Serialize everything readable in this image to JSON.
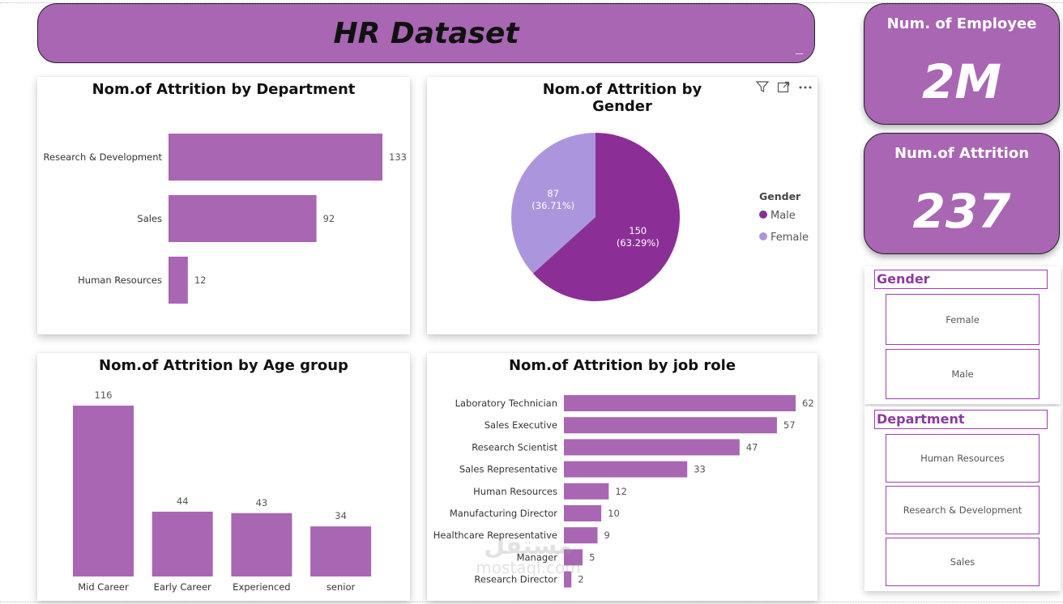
{
  "dashboard": {
    "title": "HR Dataset"
  },
  "colors": {
    "accent": "#a866b3",
    "male": "#8b2f96",
    "female": "#ab96dd",
    "bar": "#a866b3"
  },
  "kpis": {
    "employees": {
      "label": "Num. of Employee",
      "value": "2M"
    },
    "attrition": {
      "label": "Num.of Attrition",
      "value": "237"
    }
  },
  "slicers": {
    "gender": {
      "title": "Gender",
      "options": [
        "Female",
        "Male"
      ]
    },
    "department": {
      "title": "Department",
      "options": [
        "Human Resources",
        "Research & Development",
        "Sales"
      ]
    }
  },
  "visual_icons": [
    "filter-icon",
    "focus-mode-icon",
    "more-options-icon"
  ],
  "watermark": {
    "arabic": "مستقل",
    "latin": "mostaql.com"
  },
  "chart_data": [
    {
      "id": "dept",
      "type": "bar",
      "orientation": "horizontal",
      "title": "Nom.of Attrition by Department",
      "categories": [
        "Research & Development",
        "Sales",
        "Human Resources"
      ],
      "values": [
        133,
        92,
        12
      ],
      "xlim": [
        0,
        133
      ]
    },
    {
      "id": "gender",
      "type": "pie",
      "title": "Nom.of Attrition by Gender",
      "legend_title": "Gender",
      "legend_position": "right",
      "categories": [
        "Male",
        "Female"
      ],
      "values": [
        150,
        87
      ],
      "labels": [
        {
          "value": "150",
          "percent": "(63.29%)"
        },
        {
          "value": "87",
          "percent": "(36.71%)"
        }
      ]
    },
    {
      "id": "age",
      "type": "bar",
      "orientation": "vertical",
      "title": "Nom.of Attrition by Age group",
      "categories": [
        "Mid Career",
        "Early Career",
        "Experienced",
        "senior"
      ],
      "values": [
        116,
        44,
        43,
        34
      ],
      "ylim": [
        0,
        116
      ]
    },
    {
      "id": "role",
      "type": "bar",
      "orientation": "horizontal",
      "title": "Nom.of Attrition by job role",
      "categories": [
        "Laboratory Technician",
        "Sales Executive",
        "Research Scientist",
        "Sales Representative",
        "Human Resources",
        "Manufacturing Director",
        "Healthcare Representative",
        "Manager",
        "Research Director"
      ],
      "values": [
        62,
        57,
        47,
        33,
        12,
        10,
        9,
        5,
        2
      ],
      "xlim": [
        0,
        62
      ]
    }
  ]
}
